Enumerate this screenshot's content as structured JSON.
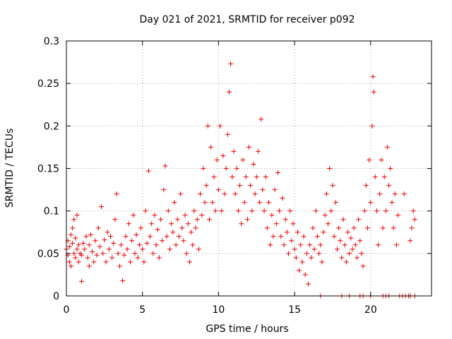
{
  "chart_data": {
    "type": "scatter",
    "title": "Day 021 of 2021, SRMTID for receiver p092",
    "xlabel": "GPS time / hours",
    "ylabel": "SRMTID / TECUs",
    "xlim": [
      0,
      24
    ],
    "ylim": [
      0,
      0.3
    ],
    "xticks": [
      0,
      5,
      10,
      15,
      20
    ],
    "xtick_labels": [
      "0",
      "5",
      "10",
      "15",
      "20"
    ],
    "yticks": [
      0,
      0.05,
      0.1,
      0.15,
      0.2,
      0.25,
      0.3
    ],
    "ytick_labels": [
      "0",
      "0.05",
      "0.1",
      "0.15",
      "0.2",
      "0.25",
      "0.3"
    ],
    "grid": true,
    "marker": "+",
    "color": "#ee0000",
    "series": [
      {
        "name": "SRMTID",
        "points": [
          [
            0.0,
            0.055
          ],
          [
            0.1,
            0.048
          ],
          [
            0.1,
            0.065
          ],
          [
            0.2,
            0.04
          ],
          [
            0.2,
            0.058
          ],
          [
            0.3,
            0.072
          ],
          [
            0.3,
            0.035
          ],
          [
            0.4,
            0.062
          ],
          [
            0.4,
            0.08
          ],
          [
            0.5,
            0.05
          ],
          [
            0.5,
            0.09
          ],
          [
            0.6,
            0.045
          ],
          [
            0.6,
            0.068
          ],
          [
            0.7,
            0.095
          ],
          [
            0.7,
            0.055
          ],
          [
            0.8,
            0.04
          ],
          [
            0.8,
            0.06
          ],
          [
            0.9,
            0.05
          ],
          [
            1.0,
            0.017
          ],
          [
            1.0,
            0.048
          ],
          [
            1.1,
            0.062
          ],
          [
            1.2,
            0.055
          ],
          [
            1.3,
            0.07
          ],
          [
            1.4,
            0.045
          ],
          [
            1.5,
            0.06
          ],
          [
            1.5,
            0.035
          ],
          [
            1.6,
            0.072
          ],
          [
            1.7,
            0.052
          ],
          [
            1.8,
            0.04
          ],
          [
            1.9,
            0.065
          ],
          [
            2.0,
            0.048
          ],
          [
            2.1,
            0.08
          ],
          [
            2.2,
            0.058
          ],
          [
            2.3,
            0.105
          ],
          [
            2.4,
            0.05
          ],
          [
            2.5,
            0.066
          ],
          [
            2.6,
            0.04
          ],
          [
            2.7,
            0.075
          ],
          [
            2.8,
            0.055
          ],
          [
            2.9,
            0.07
          ],
          [
            3.0,
            0.045
          ],
          [
            3.1,
            0.062
          ],
          [
            3.2,
            0.09
          ],
          [
            3.3,
            0.12
          ],
          [
            3.4,
            0.05
          ],
          [
            3.5,
            0.035
          ],
          [
            3.6,
            0.06
          ],
          [
            3.7,
            0.018
          ],
          [
            3.8,
            0.048
          ],
          [
            3.9,
            0.07
          ],
          [
            4.0,
            0.055
          ],
          [
            4.1,
            0.085
          ],
          [
            4.2,
            0.04
          ],
          [
            4.3,
            0.065
          ],
          [
            4.4,
            0.095
          ],
          [
            4.5,
            0.05
          ],
          [
            4.6,
            0.072
          ],
          [
            4.7,
            0.045
          ],
          [
            4.8,
            0.06
          ],
          [
            4.9,
            0.08
          ],
          [
            5.0,
            0.055
          ],
          [
            5.1,
            0.04
          ],
          [
            5.2,
            0.1
          ],
          [
            5.3,
            0.062
          ],
          [
            5.4,
            0.147
          ],
          [
            5.5,
            0.07
          ],
          [
            5.6,
            0.085
          ],
          [
            5.7,
            0.05
          ],
          [
            5.8,
            0.095
          ],
          [
            5.9,
            0.06
          ],
          [
            6.0,
            0.078
          ],
          [
            6.1,
            0.045
          ],
          [
            6.2,
            0.09
          ],
          [
            6.3,
            0.065
          ],
          [
            6.4,
            0.125
          ],
          [
            6.5,
            0.153
          ],
          [
            6.6,
            0.07
          ],
          [
            6.7,
            0.1
          ],
          [
            6.8,
            0.055
          ],
          [
            6.9,
            0.085
          ],
          [
            7.0,
            0.075
          ],
          [
            7.1,
            0.11
          ],
          [
            7.2,
            0.06
          ],
          [
            7.3,
            0.09
          ],
          [
            7.4,
            0.07
          ],
          [
            7.5,
            0.12
          ],
          [
            7.6,
            0.08
          ],
          [
            7.7,
            0.065
          ],
          [
            7.8,
            0.095
          ],
          [
            7.9,
            0.05
          ],
          [
            8.0,
            0.085
          ],
          [
            8.1,
            0.04
          ],
          [
            8.2,
            0.075
          ],
          [
            8.3,
            0.06
          ],
          [
            8.4,
            0.1
          ],
          [
            8.5,
            0.08
          ],
          [
            8.6,
            0.09
          ],
          [
            8.7,
            0.055
          ],
          [
            8.8,
            0.12
          ],
          [
            8.9,
            0.095
          ],
          [
            9.0,
            0.15
          ],
          [
            9.1,
            0.11
          ],
          [
            9.2,
            0.13
          ],
          [
            9.3,
            0.2
          ],
          [
            9.4,
            0.09
          ],
          [
            9.5,
            0.175
          ],
          [
            9.6,
            0.11
          ],
          [
            9.7,
            0.14
          ],
          [
            9.8,
            0.1
          ],
          [
            9.9,
            0.16
          ],
          [
            10.0,
            0.125
          ],
          [
            10.1,
            0.2
          ],
          [
            10.2,
            0.1
          ],
          [
            10.3,
            0.165
          ],
          [
            10.4,
            0.12
          ],
          [
            10.5,
            0.15
          ],
          [
            10.6,
            0.19
          ],
          [
            10.7,
            0.24
          ],
          [
            10.8,
            0.273
          ],
          [
            10.9,
            0.14
          ],
          [
            11.0,
            0.17
          ],
          [
            11.1,
            0.12
          ],
          [
            11.2,
            0.15
          ],
          [
            11.3,
            0.1
          ],
          [
            11.4,
            0.13
          ],
          [
            11.5,
            0.085
          ],
          [
            11.6,
            0.16
          ],
          [
            11.7,
            0.11
          ],
          [
            11.8,
            0.14
          ],
          [
            11.9,
            0.09
          ],
          [
            12.0,
            0.175
          ],
          [
            12.1,
            0.13
          ],
          [
            12.2,
            0.1
          ],
          [
            12.3,
            0.155
          ],
          [
            12.4,
            0.12
          ],
          [
            12.5,
            0.14
          ],
          [
            12.6,
            0.17
          ],
          [
            12.7,
            0.11
          ],
          [
            12.8,
            0.208
          ],
          [
            12.9,
            0.125
          ],
          [
            13.0,
            0.1
          ],
          [
            13.1,
            0.14
          ],
          [
            13.2,
            0.08
          ],
          [
            13.3,
            0.11
          ],
          [
            13.4,
            0.06
          ],
          [
            13.5,
            0.095
          ],
          [
            13.6,
            0.07
          ],
          [
            13.7,
            0.125
          ],
          [
            13.8,
            0.085
          ],
          [
            13.9,
            0.145
          ],
          [
            14.0,
            0.1
          ],
          [
            14.1,
            0.07
          ],
          [
            14.2,
            0.115
          ],
          [
            14.3,
            0.06
          ],
          [
            14.4,
            0.09
          ],
          [
            14.5,
            0.075
          ],
          [
            14.6,
            0.05
          ],
          [
            14.7,
            0.1
          ],
          [
            14.8,
            0.065
          ],
          [
            14.9,
            0.085
          ],
          [
            15.0,
            0.055
          ],
          [
            15.1,
            0.045
          ],
          [
            15.2,
            0.075
          ],
          [
            15.3,
            0.03
          ],
          [
            15.4,
            0.06
          ],
          [
            15.5,
            0.04
          ],
          [
            15.6,
            0.07
          ],
          [
            15.7,
            0.025
          ],
          [
            15.8,
            0.05
          ],
          [
            15.9,
            0.014
          ],
          [
            16.0,
            0.06
          ],
          [
            16.1,
            0.045
          ],
          [
            16.2,
            0.08
          ],
          [
            16.3,
            0.055
          ],
          [
            16.4,
            0.1
          ],
          [
            16.5,
            0.07
          ],
          [
            16.6,
            0.05
          ],
          [
            16.7,
            0.06
          ],
          [
            16.8,
            0.04
          ],
          [
            16.9,
            0.075
          ],
          [
            17.0,
            0.095
          ],
          [
            17.1,
            0.12
          ],
          [
            17.2,
            0.085
          ],
          [
            17.3,
            0.15
          ],
          [
            17.4,
            0.1
          ],
          [
            17.5,
            0.13
          ],
          [
            17.6,
            0.07
          ],
          [
            17.7,
            0.11
          ],
          [
            17.8,
            0.055
          ],
          [
            17.9,
            0.08
          ],
          [
            18.0,
            0.065
          ],
          [
            18.1,
            0.045
          ],
          [
            18.2,
            0.09
          ],
          [
            18.3,
            0.06
          ],
          [
            18.4,
            0.04
          ],
          [
            18.5,
            0.075
          ],
          [
            18.6,
            0.05
          ],
          [
            18.7,
            0.068
          ],
          [
            18.8,
            0.055
          ],
          [
            18.9,
            0.08
          ],
          [
            19.0,
            0.06
          ],
          [
            19.1,
            0.045
          ],
          [
            19.2,
            0.09
          ],
          [
            19.3,
            0.065
          ],
          [
            19.4,
            0.05
          ],
          [
            19.5,
            0.035
          ],
          [
            19.6,
            0.1
          ],
          [
            19.7,
            0.13
          ],
          [
            19.8,
            0.08
          ],
          [
            19.9,
            0.16
          ],
          [
            20.0,
            0.11
          ],
          [
            20.1,
            0.2
          ],
          [
            20.15,
            0.258
          ],
          [
            20.2,
            0.24
          ],
          [
            20.3,
            0.14
          ],
          [
            20.4,
            0.1
          ],
          [
            20.5,
            0.06
          ],
          [
            20.6,
            0.12
          ],
          [
            20.7,
            0.16
          ],
          [
            20.8,
            0.08
          ],
          [
            20.9,
            0.14
          ],
          [
            21.0,
            0.1
          ],
          [
            21.1,
            0.175
          ],
          [
            21.2,
            0.13
          ],
          [
            21.3,
            0.15
          ],
          [
            21.4,
            0.11
          ],
          [
            21.5,
            0.08
          ],
          [
            21.6,
            0.12
          ],
          [
            21.7,
            0.06
          ],
          [
            21.8,
            0.095
          ],
          [
            22.2,
            0.12
          ],
          [
            22.6,
            0.065
          ],
          [
            22.7,
            0.08
          ],
          [
            22.8,
            0.1
          ],
          [
            22.9,
            0.09
          ],
          [
            16.7,
            0.0
          ],
          [
            18.1,
            0.0
          ],
          [
            18.6,
            0.0
          ],
          [
            19.3,
            0.0
          ],
          [
            19.5,
            0.0
          ],
          [
            20.0,
            0.0
          ],
          [
            20.8,
            0.0
          ],
          [
            21.0,
            0.0
          ],
          [
            21.2,
            0.0
          ],
          [
            21.9,
            0.0
          ],
          [
            22.1,
            0.0
          ],
          [
            22.3,
            0.0
          ],
          [
            22.5,
            0.0
          ],
          [
            22.6,
            0.0
          ],
          [
            22.9,
            0.0
          ]
        ]
      }
    ]
  }
}
